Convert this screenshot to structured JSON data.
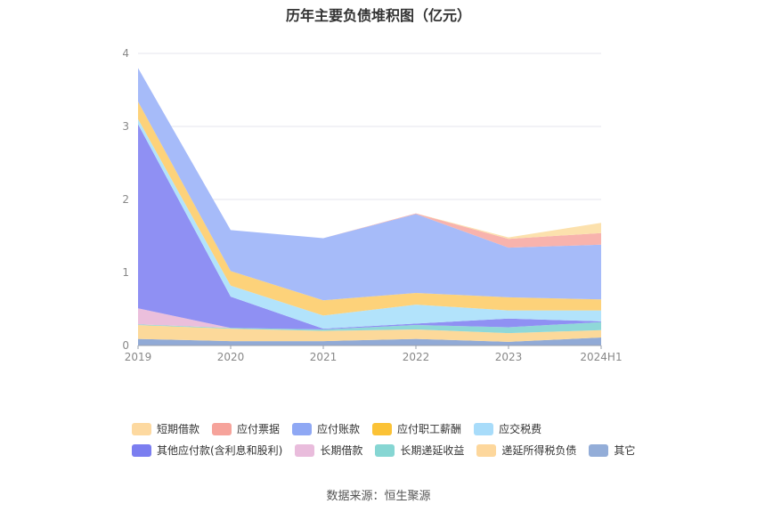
{
  "chart_data": {
    "type": "area",
    "stacked": true,
    "title": "历年主要负债堆积图（亿元）",
    "categories": [
      "2019",
      "2020",
      "2021",
      "2022",
      "2023",
      "2024H1"
    ],
    "ylim": [
      0,
      4
    ],
    "yticks": [
      0,
      1,
      2,
      3,
      4
    ],
    "grid": true,
    "legend_position": "bottom",
    "series": [
      {
        "name": "其它",
        "color": "#91aad6",
        "values": [
          0.09,
          0.06,
          0.06,
          0.09,
          0.05,
          0.11
        ]
      },
      {
        "name": "递延所得税负债",
        "color": "#fcd99a",
        "values": [
          0.19,
          0.17,
          0.14,
          0.13,
          0.12,
          0.1
        ]
      },
      {
        "name": "长期递延收益",
        "color": "#8fd8d8",
        "values": [
          0.01,
          0.01,
          0.02,
          0.06,
          0.08,
          0.11
        ]
      },
      {
        "name": "长期借款",
        "color": "#ebbfdc",
        "values": [
          0.22,
          0,
          0,
          0,
          0,
          0
        ]
      },
      {
        "name": "其他应付款(含利息和股利)",
        "color": "#8f90f3",
        "values": [
          2.52,
          0.43,
          0.01,
          0.02,
          0.12,
          0.01
        ]
      },
      {
        "name": "应交税费",
        "color": "#b2e3fb",
        "values": [
          0.07,
          0.15,
          0.18,
          0.26,
          0.11,
          0.15
        ]
      },
      {
        "name": "应付职工薪酬",
        "color": "#fdd27a",
        "values": [
          0.24,
          0.2,
          0.21,
          0.16,
          0.18,
          0.15
        ]
      },
      {
        "name": "应付账款",
        "color": "#a6bbf9",
        "values": [
          0.46,
          0.56,
          0.85,
          1.08,
          0.68,
          0.75
        ]
      },
      {
        "name": "应付票据",
        "color": "#f8b3ad",
        "values": [
          0,
          0,
          0,
          0.01,
          0.12,
          0.16
        ]
      },
      {
        "name": "短期借款",
        "color": "#fce1ad",
        "values": [
          0,
          0,
          0,
          0,
          0.02,
          0.14
        ]
      }
    ]
  },
  "legend": {
    "row1": [
      {
        "label": "短期借款",
        "color": "#fdd9a0"
      },
      {
        "label": "应付票据",
        "color": "#f6a39b"
      },
      {
        "label": "应付账款",
        "color": "#8fa8f4"
      },
      {
        "label": "应付职工薪酬",
        "color": "#fbc236"
      },
      {
        "label": "应交税费",
        "color": "#a8dcfa"
      }
    ],
    "row2": [
      {
        "label": "其他应付款(含利息和股利)",
        "color": "#7b7ef0"
      },
      {
        "label": "长期借款",
        "color": "#e9bcdc"
      },
      {
        "label": "长期递延收益",
        "color": "#86d6d3"
      },
      {
        "label": "递延所得税负债",
        "color": "#fdd79c"
      },
      {
        "label": "其它",
        "color": "#93add8"
      }
    ]
  },
  "source": "数据来源：恒生聚源"
}
